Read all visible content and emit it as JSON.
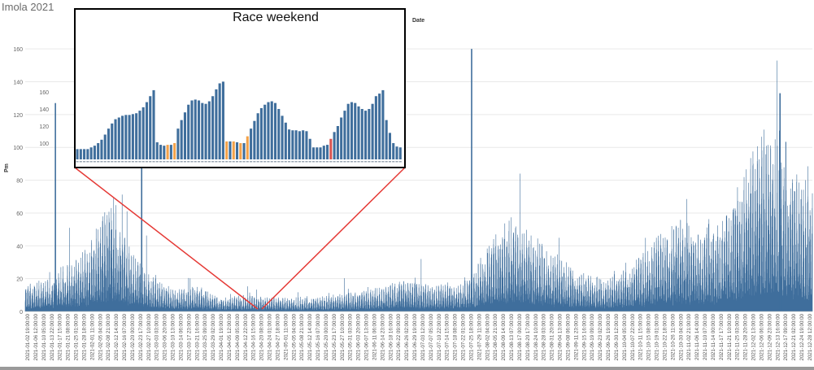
{
  "title": "Imola 2021",
  "column_label": "Date",
  "inset_title": "Race weekend",
  "colors": {
    "bar": "#3f6e9c",
    "grid": "#e9e9e9",
    "connector": "#e53935",
    "inset_border": "#000000",
    "highlight_orange": "#f3a24a",
    "highlight_red": "#d9534f"
  },
  "chart_data": [
    {
      "type": "bar",
      "title": "Imola 2021",
      "ylabel": "Pm",
      "xlabel": "",
      "ylim": [
        0,
        170
      ],
      "yticks": [
        0,
        20,
        40,
        60,
        80,
        100,
        120,
        140,
        160
      ],
      "grid": true,
      "x_tick_labels": [
        "2021-01-02 19:00:00",
        "2021-01-06 12:00:00",
        "2021-01-10 05:00:00",
        "2021-01-13 22:00:00",
        "2021-01-17 15:00:00",
        "2021-01-21 08:00:00",
        "2021-01-25 01:00:00",
        "2021-01-28 18:00:00",
        "2021-02-01 11:00:00",
        "2021-02-05 04:00:00",
        "2021-02-08 21:00:00",
        "2021-02-12 14:00:00",
        "2021-02-16 07:00:00",
        "2021-02-20 00:00:00",
        "2021-02-23 17:00:00",
        "2021-02-27 10:00:00",
        "2021-03-03 03:00:00",
        "2021-03-06 20:00:00",
        "2021-03-10 13:00:00",
        "2021-03-14 06:00:00",
        "2021-03-17 23:00:00",
        "2021-03-21 16:00:00",
        "2021-03-25 09:00:00",
        "2021-03-29 02:00:00",
        "2021-04-01 19:00:00",
        "2021-04-05 12:00:00",
        "2021-04-09 05:00:00",
        "2021-04-12 22:00:00",
        "2021-04-16 15:00:00",
        "2021-04-20 08:00:00",
        "2021-04-24 01:00:00",
        "2021-04-27 18:00:00",
        "2021-05-01 11:00:00",
        "2021-05-05 04:00:00",
        "2021-05-08 21:00:00",
        "2021-05-12 14:00:00",
        "2021-05-16 07:00:00",
        "2021-05-20 00:00:00",
        "2021-05-23 17:00:00",
        "2021-05-27 10:00:00",
        "2021-05-31 03:00:00",
        "2021-06-03 20:00:00",
        "2021-06-07 13:00:00",
        "2021-06-11 06:00:00",
        "2021-06-14 23:00:00",
        "2021-06-18 16:00:00",
        "2021-06-22 09:00:00",
        "2021-06-26 02:00:00",
        "2021-06-29 19:00:00",
        "2021-07-03 12:00:00",
        "2021-07-07 05:00:00",
        "2021-07-10 22:00:00",
        "2021-07-14 15:00:00",
        "2021-07-18 08:00:00",
        "2021-07-22 01:00:00",
        "2021-07-25 18:00:00",
        "2021-07-29 11:00:00",
        "2021-08-02 04:00:00",
        "2021-08-05 21:00:00",
        "2021-08-09 14:00:00",
        "2021-08-13 07:00:00",
        "2021-08-17 00:00:00",
        "2021-08-20 17:00:00",
        "2021-08-24 10:00:00",
        "2021-08-28 03:00:00",
        "2021-08-31 20:00:00",
        "2021-09-04 13:00:00",
        "2021-09-08 06:00:00",
        "2021-09-11 23:00:00",
        "2021-09-15 16:00:00",
        "2021-09-19 09:00:00",
        "2021-09-23 02:00:00",
        "2021-09-26 19:00:00",
        "2021-09-30 12:00:00",
        "2021-10-04 05:00:00",
        "2021-10-07 22:00:00",
        "2021-10-11 15:00:00",
        "2021-10-15 08:00:00",
        "2021-10-19 01:00:00",
        "2021-10-22 18:00:00",
        "2021-10-26 11:00:00",
        "2021-10-30 04:00:00",
        "2021-11-02 21:00:00",
        "2021-11-06 14:00:00",
        "2021-11-10 07:00:00",
        "2021-11-14 00:00:00",
        "2021-11-17 17:00:00",
        "2021-11-21 10:00:00",
        "2021-11-25 03:00:00",
        "2021-11-28 20:00:00",
        "2021-12-02 13:00:00",
        "2021-12-06 06:00:00",
        "2021-12-09 23:00:00",
        "2021-12-13 16:00:00",
        "2021-12-17 09:00:00",
        "2021-12-21 02:00:00",
        "2021-12-24 19:00:00",
        "2021-12-28 12:00:00"
      ],
      "notable_peaks": [
        {
          "date": "2021-01-15",
          "value": 127
        },
        {
          "date": "2021-02-24",
          "value": 170
        },
        {
          "date": "2021-07-27",
          "value": 160
        },
        {
          "date": "2021-12-17",
          "value": 133
        }
      ]
    },
    {
      "type": "bar",
      "title": "Race weekend",
      "ylim": [
        90,
        170
      ],
      "ytick_labels": [
        "100",
        "120",
        "140",
        "160"
      ],
      "values": [
        93,
        93,
        93,
        93,
        95,
        97,
        100,
        104,
        110,
        117,
        123,
        128,
        130,
        132,
        133,
        133,
        134,
        135,
        138,
        142,
        148,
        155,
        162,
        101,
        98,
        97,
        98,
        98,
        100,
        117,
        127,
        136,
        145,
        150,
        151,
        150,
        147,
        146,
        149,
        155,
        163,
        170,
        172,
        102,
        102,
        102,
        101,
        100,
        100,
        108,
        117,
        126,
        135,
        141,
        145,
        148,
        149,
        147,
        140,
        132,
        124,
        116,
        115,
        115,
        114,
        115,
        114,
        105,
        95,
        95,
        95,
        97,
        98,
        105,
        113,
        120,
        130,
        138,
        146,
        148,
        147,
        143,
        140,
        138,
        140,
        146,
        155,
        158,
        162,
        127,
        112,
        100,
        96,
        95
      ],
      "highlights": {
        "orange": [
          26,
          28,
          43,
          45,
          47,
          49
        ],
        "red": [
          73
        ]
      }
    }
  ]
}
